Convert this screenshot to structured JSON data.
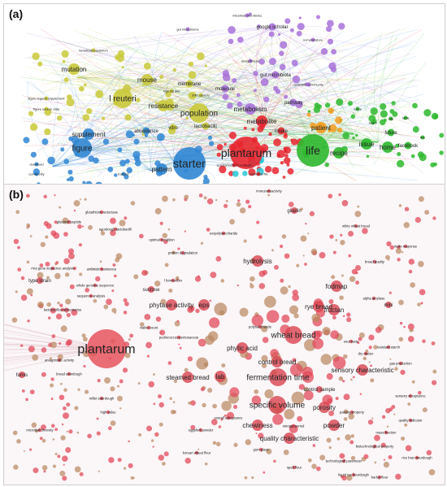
{
  "panel_a": {
    "label": "(a)",
    "colors": {
      "yellow": "#c9c93a",
      "blue": "#2f86d3",
      "red": "#e8262f",
      "green": "#2eb82e",
      "purple": "#a872d9",
      "orange": "#f39c1e",
      "cyan": "#29c7d6",
      "links": "#d7d36b"
    },
    "terms": [
      {
        "id": "starter",
        "text": "starter",
        "cluster": "blue",
        "size": "xl"
      },
      {
        "id": "plantarum",
        "text": "plantarum",
        "cluster": "red",
        "size": "xl"
      },
      {
        "id": "life",
        "text": "life",
        "cluster": "green",
        "size": "xl"
      },
      {
        "id": "figure",
        "text": "figure",
        "cluster": "blue",
        "size": "l"
      },
      {
        "id": "supplement",
        "text": "supplement",
        "cluster": "blue",
        "size": "m"
      },
      {
        "id": "pattern",
        "text": "pattern",
        "cluster": "blue",
        "size": "m"
      },
      {
        "id": "population",
        "text": "population",
        "cluster": "yellow",
        "size": "l"
      },
      {
        "id": "reuteri",
        "text": "l reuteri",
        "cluster": "yellow",
        "size": "l"
      },
      {
        "id": "resistance",
        "text": "resistance",
        "cluster": "yellow",
        "size": "m"
      },
      {
        "id": "mutation",
        "text": "mutation",
        "cluster": "yellow",
        "size": "m"
      },
      {
        "id": "mouse",
        "text": "mouse",
        "cluster": "yellow",
        "size": "m"
      },
      {
        "id": "metabolism",
        "text": "metabolism",
        "cluster": "purple",
        "size": "m"
      },
      {
        "id": "metabolite",
        "text": "metabolite",
        "cluster": "red",
        "size": "m"
      },
      {
        "id": "patient",
        "text": "patient",
        "cluster": "orange",
        "size": "m"
      },
      {
        "id": "recipe",
        "text": "recipe",
        "cluster": "green",
        "size": "m"
      },
      {
        "id": "issue",
        "text": "issue",
        "cluster": "green",
        "size": "m"
      },
      {
        "id": "home",
        "text": "home",
        "cluster": "green",
        "size": "m"
      },
      {
        "id": "google_scholar",
        "text": "google scholar",
        "cluster": "purple",
        "size": "s"
      },
      {
        "id": "lactobacilli",
        "text": "lactobacilli",
        "cluster": "yellow",
        "size": "s"
      },
      {
        "id": "abundance",
        "text": "abundance",
        "cluster": "blue",
        "size": "s"
      },
      {
        "id": "vitro",
        "text": "vitro",
        "cluster": "yellow",
        "size": "s"
      },
      {
        "id": "pathway",
        "text": "pathway",
        "cluster": "purple",
        "size": "s"
      },
      {
        "id": "intake",
        "text": "intake",
        "cluster": "red",
        "size": "s"
      },
      {
        "id": "future",
        "text": "future",
        "cluster": "green",
        "size": "s"
      },
      {
        "id": "facebook",
        "text": "facebook",
        "cluster": "green",
        "size": "s"
      },
      {
        "id": "molecule",
        "text": "molecule",
        "cluster": "purple",
        "size": "s"
      },
      {
        "id": "gut_microbiota",
        "text": "gut microbiota",
        "cluster": "purple",
        "size": "s"
      },
      {
        "id": "membrane",
        "text": "membrane",
        "cluster": "yellow",
        "size": "s"
      },
      {
        "id": "intestinal_microbiota",
        "text": "intestinal microbiota",
        "cluster": "purple",
        "size": "xs"
      },
      {
        "id": "gut_microbiome",
        "text": "gut microbiome",
        "cluster": "purple",
        "size": "xs"
      },
      {
        "id": "beneficial_bacterium",
        "text": "beneficial bacterium",
        "cluster": "yellow",
        "size": "xs"
      },
      {
        "id": "figure_legend_supplement",
        "text": "figure legend supplement",
        "cluster": "yellow",
        "size": "xs"
      },
      {
        "id": "figure_source_data",
        "text": "figure source data",
        "cluster": "yellow",
        "size": "xs"
      },
      {
        "id": "community",
        "text": "community",
        "cluster": "blue",
        "size": "xs"
      },
      {
        "id": "download",
        "text": "download",
        "cluster": "blue",
        "size": "xs"
      },
      {
        "id": "transfer",
        "text": "transfer",
        "cluster": "blue",
        "size": "xs"
      },
      {
        "id": "biosynthesis",
        "text": "biosynthesis",
        "cluster": "purple",
        "size": "xs"
      },
      {
        "id": "scientific_community",
        "text": "scientific community",
        "cluster": "purple",
        "size": "xs"
      },
      {
        "id": "nomenclature",
        "text": "nomenclature",
        "cluster": "purple",
        "size": "xs"
      },
      {
        "id": "high_fat_diet",
        "text": "high fat diet",
        "cluster": "yellow",
        "size": "xs"
      },
      {
        "id": "century",
        "text": "20th century",
        "cluster": "yellow",
        "size": "xs"
      },
      {
        "id": "spontaneous_sourdough",
        "text": "spontaneous sourdough",
        "cluster": "red",
        "size": "xs"
      },
      {
        "id": "additional_file",
        "text": "additional file",
        "cluster": "red",
        "size": "xs"
      },
      {
        "id": "name",
        "text": "name",
        "cluster": "green",
        "size": "xs"
      },
      {
        "id": "site",
        "text": "site",
        "cluster": "green",
        "size": "xs"
      },
      {
        "id": "snack",
        "text": "snack",
        "cluster": "green",
        "size": "xs"
      },
      {
        "id": "taste",
        "text": "taste",
        "cluster": "green",
        "size": "xs"
      },
      {
        "id": "line",
        "text": "line",
        "cluster": "green",
        "size": "xs"
      }
    ]
  },
  "panel_b": {
    "label": "(b)",
    "terms": [
      {
        "id": "plantarum",
        "text": "plantarum",
        "size": "xl"
      },
      {
        "id": "wheat_bread",
        "text": "wheat bread",
        "size": "l"
      },
      {
        "id": "specific_volume",
        "text": "specific volume",
        "size": "l"
      },
      {
        "id": "fermentation_time",
        "text": "fermentation time",
        "size": "l"
      },
      {
        "id": "steamed_bread",
        "text": "steamed bread",
        "size": "m"
      },
      {
        "id": "rye_bread",
        "text": "rye bread",
        "size": "m"
      },
      {
        "id": "sensory_characteristic",
        "text": "sensory characteristic",
        "size": "m"
      },
      {
        "id": "hydrolysis",
        "text": "hydrolysis",
        "size": "m"
      },
      {
        "id": "control_bread",
        "text": "control bread",
        "size": "m"
      },
      {
        "id": "eps",
        "text": "eps",
        "size": "m"
      },
      {
        "id": "phytic_acid",
        "text": "phytic acid",
        "size": "m"
      },
      {
        "id": "porosity",
        "text": "porosity",
        "size": "m"
      },
      {
        "id": "powder",
        "text": "powder",
        "size": "m"
      },
      {
        "id": "chewiness",
        "text": "chewiness",
        "size": "m"
      },
      {
        "id": "quality_characteristic",
        "text": "quality characteristic",
        "size": "m"
      },
      {
        "id": "fodmap",
        "text": "fodmap",
        "size": "m"
      },
      {
        "id": "fructan",
        "text": "fructan",
        "size": "m"
      },
      {
        "id": "phytase_activity",
        "text": "phytase activity",
        "size": "m"
      },
      {
        "id": "lab",
        "text": "lab",
        "size": "m"
      },
      {
        "id": "gliadin",
        "text": "gliadin",
        "size": "s"
      },
      {
        "id": "sucrose",
        "text": "sucrose",
        "size": "s"
      },
      {
        "id": "fumis",
        "text": "fumis",
        "size": "s"
      },
      {
        "id": "type_strain",
        "text": "type strain",
        "size": "s"
      },
      {
        "id": "control_sample",
        "text": "control sample",
        "size": "s"
      },
      {
        "id": "mini",
        "text": "mini",
        "size": "s"
      },
      {
        "id": "pediococcus_pentosaceus",
        "text": "pediococcus pentosaceus",
        "size": "xs"
      },
      {
        "id": "l_fermentum",
        "text": "l fermentum",
        "size": "xs"
      },
      {
        "id": "sourdough_lactobacilli",
        "text": "sourdough lactobacilli",
        "size": "xs"
      },
      {
        "id": "white_wheat_bread",
        "text": "white wheat bread",
        "size": "xs"
      },
      {
        "id": "inulin_response",
        "text": "inulin response",
        "size": "xs"
      },
      {
        "id": "millet_sourdough",
        "text": "millet sourdough",
        "size": "xs"
      },
      {
        "id": "high_value",
        "text": "high value",
        "size": "xs"
      },
      {
        "id": "microbial_diversity",
        "text": "microbial diversity",
        "size": "xs"
      },
      {
        "id": "eggshell_powder",
        "text": "eggshell powder",
        "size": "xs"
      },
      {
        "id": "korean_wheat_flour",
        "text": "korean wheat flour",
        "size": "xs"
      },
      {
        "id": "liquid_rye_sourdough",
        "text": "liquid rye sourdough",
        "size": "xs"
      },
      {
        "id": "rice_bran_sourdough",
        "text": "rice bran sourdough",
        "size": "xs"
      },
      {
        "id": "gum_glass",
        "text": "gum glass",
        "size": "xs"
      },
      {
        "id": "bread_sourdough",
        "text": "bread sourdough",
        "size": "xs"
      },
      {
        "id": "antagonistic_activity",
        "text": "antagonistic activity",
        "size": "xs"
      },
      {
        "id": "antibiotic_resistance",
        "text": "antibiotic resistance",
        "size": "xs"
      },
      {
        "id": "lactobacillus_alimentarius",
        "text": "lactobacillus alimentarius",
        "size": "xs"
      },
      {
        "id": "sequence_analysis",
        "text": "sequence analysis",
        "size": "xs"
      },
      {
        "id": "whole_genome",
        "text": "whole genome sequence",
        "size": "xs"
      },
      {
        "id": "pasting_property",
        "text": "pasting property",
        "size": "xs"
      },
      {
        "id": "quality_indicator",
        "text": "quality indicator",
        "size": "xs"
      },
      {
        "id": "technological_parameter",
        "text": "technological parameter",
        "size": "xs"
      },
      {
        "id": "storage_period",
        "text": "storage period",
        "size": "xs"
      },
      {
        "id": "sour_taste",
        "text": "sour taste",
        "size": "xs"
      },
      {
        "id": "overall_acceptance",
        "text": "overall acceptance",
        "size": "xs"
      },
      {
        "id": "dry_matter",
        "text": "dry matter",
        "size": "xs"
      },
      {
        "id": "protein_degradation",
        "text": "protein degradation",
        "size": "xs"
      },
      {
        "id": "gas_production",
        "text": "gas production",
        "size": "xs"
      },
      {
        "id": "glutathione_reductase",
        "text": "glutathione reductase",
        "size": "xs"
      },
      {
        "id": "glutamyl_peptide",
        "text": "glutamyl peptide",
        "size": "xs"
      },
      {
        "id": "optimal_condition",
        "text": "optimal condition",
        "size": "xs"
      },
      {
        "id": "rna_gene",
        "text": "rrna gene sequence analysis",
        "size": "xs"
      },
      {
        "id": "viable_count",
        "text": "viable count",
        "size": "xs"
      },
      {
        "id": "bread_quality",
        "text": "bread quality",
        "size": "xs"
      },
      {
        "id": "mass_fraction",
        "text": "mass fraction",
        "size": "xs"
      },
      {
        "id": "sensory_acceptance",
        "text": "sensory acceptance",
        "size": "xs"
      },
      {
        "id": "biotechnological_property",
        "text": "biotechnological property",
        "size": "xs"
      },
      {
        "id": "resistant_starch",
        "text": "resistant starch",
        "size": "xs"
      },
      {
        "id": "immunoreactivity",
        "text": "immunoreactivity",
        "size": "xs"
      },
      {
        "id": "alpha_amylase",
        "text": "alpha amylase",
        "size": "xs"
      },
      {
        "id": "polysaccharide",
        "text": "polysaccharide",
        "size": "xs"
      },
      {
        "id": "spelt_flour",
        "text": "spelt flour",
        "size": "xs"
      },
      {
        "id": "exopolysaccharide",
        "text": "exopolysaccharide",
        "size": "xs"
      },
      {
        "id": "barley_flour",
        "text": "barley flour",
        "size": "xs"
      }
    ]
  }
}
